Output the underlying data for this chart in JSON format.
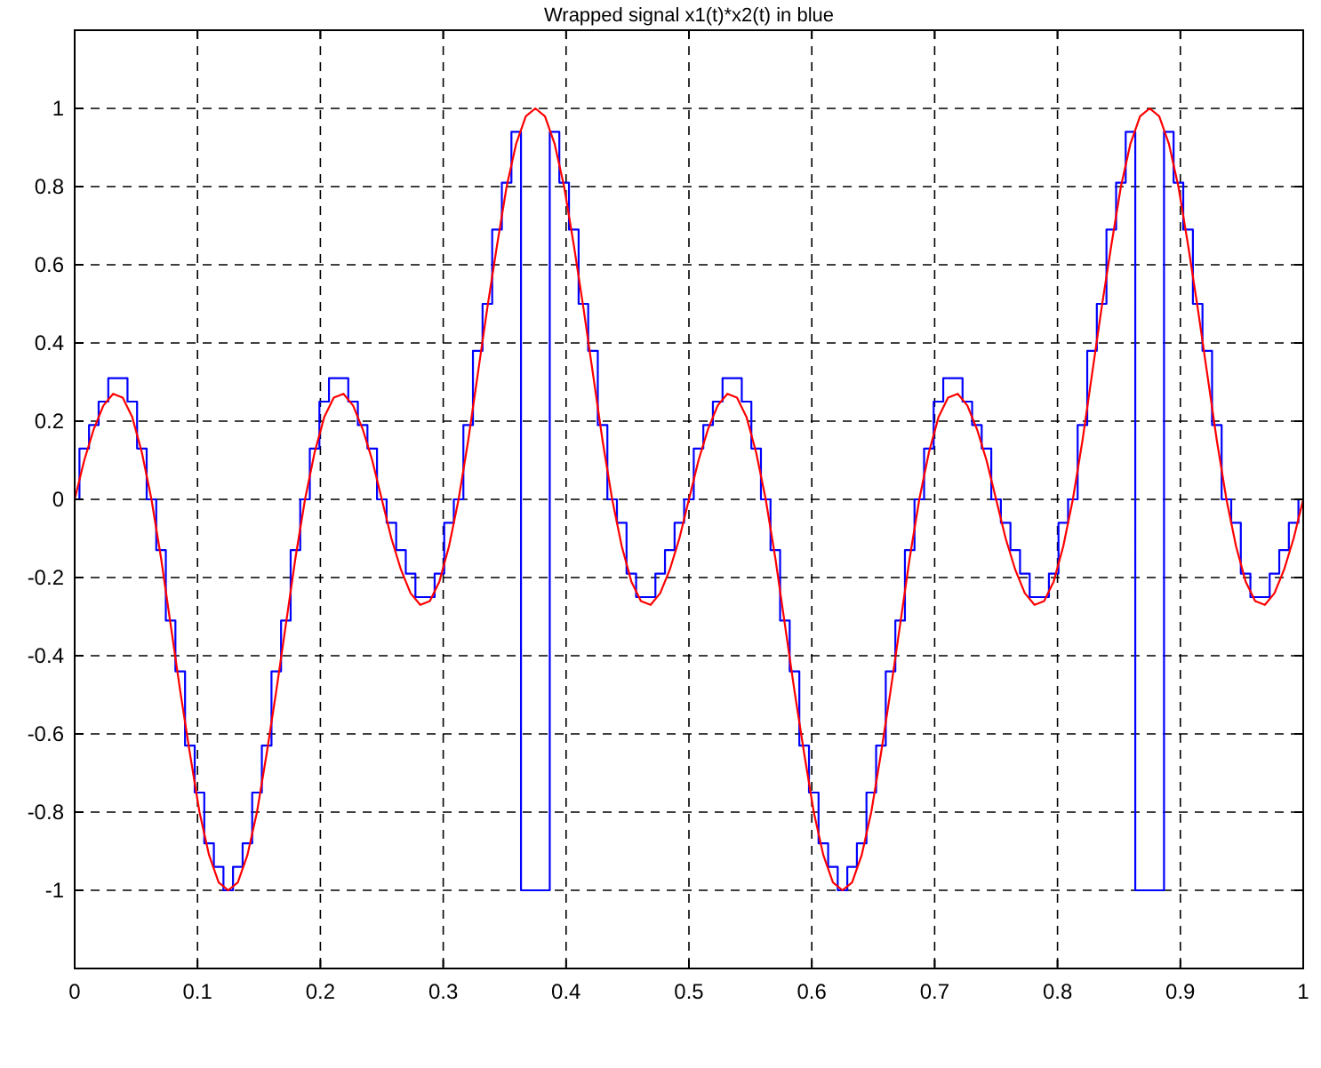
{
  "chart_data": {
    "type": "line",
    "title": "Wrapped signal x1(t)*x2(t) in blue",
    "x": [
      0,
      0.0078,
      0.0156,
      0.0234,
      0.0313,
      0.0391,
      0.0469,
      0.0547,
      0.0625,
      0.0703,
      0.0781,
      0.0859,
      0.0938,
      0.1016,
      0.1094,
      0.1172,
      0.125,
      0.1328,
      0.1406,
      0.1484,
      0.1563,
      0.1641,
      0.1719,
      0.1797,
      0.1875,
      0.1953,
      0.2031,
      0.2109,
      0.2188,
      0.2266,
      0.2344,
      0.2422,
      0.25,
      0.2578,
      0.2656,
      0.2734,
      0.2813,
      0.2891,
      0.2969,
      0.3047,
      0.3125,
      0.3203,
      0.3281,
      0.3359,
      0.3438,
      0.3516,
      0.3594,
      0.3672,
      0.375,
      0.3828,
      0.3906,
      0.3984,
      0.4063,
      0.4141,
      0.4219,
      0.4297,
      0.4375,
      0.4453,
      0.4531,
      0.4609,
      0.4688,
      0.4766,
      0.4844,
      0.4922,
      0.5,
      0.5078,
      0.5156,
      0.5234,
      0.5313,
      0.5391,
      0.5469,
      0.5547,
      0.5625,
      0.5703,
      0.5781,
      0.5859,
      0.5938,
      0.6016,
      0.6094,
      0.6172,
      0.625,
      0.6328,
      0.6406,
      0.6484,
      0.6563,
      0.6641,
      0.6719,
      0.6797,
      0.6875,
      0.6953,
      0.7031,
      0.7109,
      0.7188,
      0.7266,
      0.7344,
      0.7422,
      0.75,
      0.7578,
      0.7656,
      0.7734,
      0.7813,
      0.7891,
      0.7969,
      0.8047,
      0.8125,
      0.8203,
      0.8281,
      0.8359,
      0.8438,
      0.8516,
      0.8594,
      0.8672,
      0.875,
      0.8828,
      0.8906,
      0.8984,
      0.9063,
      0.9141,
      0.9219,
      0.9297,
      0.9375,
      0.9453,
      0.9531,
      0.9609,
      0.9688,
      0.9766,
      0.9844,
      0.9922,
      1
    ],
    "series": [
      {
        "type": "step",
        "color": "#0000ff",
        "values": [
          0,
          0.13,
          0.19,
          0.25,
          0.31,
          0.31,
          0.25,
          0.13,
          0,
          -0.13,
          -0.31,
          -0.44,
          -0.63,
          -0.75,
          -0.88,
          -0.94,
          -1,
          -0.94,
          -0.88,
          -0.75,
          -0.63,
          -0.44,
          -0.31,
          -0.13,
          0,
          0.13,
          0.25,
          0.31,
          0.31,
          0.25,
          0.19,
          0.13,
          0,
          -0.06,
          -0.13,
          -0.19,
          -0.25,
          -0.25,
          -0.19,
          -0.06,
          0,
          0.19,
          0.38,
          0.5,
          0.69,
          0.81,
          0.94,
          -1,
          -1,
          -1,
          0.94,
          0.81,
          0.69,
          0.5,
          0.38,
          0.19,
          0,
          -0.06,
          -0.19,
          -0.25,
          -0.25,
          -0.19,
          -0.13,
          -0.06,
          0,
          0.13,
          0.19,
          0.25,
          0.31,
          0.31,
          0.25,
          0.13,
          0,
          -0.13,
          -0.31,
          -0.44,
          -0.63,
          -0.75,
          -0.88,
          -0.94,
          -1,
          -0.94,
          -0.88,
          -0.75,
          -0.63,
          -0.44,
          -0.31,
          -0.13,
          0,
          0.13,
          0.25,
          0.31,
          0.31,
          0.25,
          0.19,
          0.13,
          0,
          -0.06,
          -0.13,
          -0.19,
          -0.25,
          -0.25,
          -0.19,
          -0.06,
          0,
          0.19,
          0.38,
          0.5,
          0.69,
          0.81,
          0.94,
          -1,
          -1,
          -1,
          0.94,
          0.81,
          0.69,
          0.5,
          0.38,
          0.19,
          0,
          -0.06,
          -0.19,
          -0.25,
          -0.25,
          -0.19,
          -0.13,
          -0.06,
          0
        ]
      },
      {
        "type": "line",
        "color": "#ff0000",
        "values": [
          0,
          0.1,
          0.18,
          0.24,
          0.27,
          0.26,
          0.21,
          0.12,
          0,
          -0.15,
          -0.32,
          -0.49,
          -0.65,
          -0.8,
          -0.91,
          -0.98,
          -1,
          -0.98,
          -0.91,
          -0.8,
          -0.65,
          -0.49,
          -0.32,
          -0.15,
          0,
          0.12,
          0.21,
          0.26,
          0.27,
          0.24,
          0.18,
          0.1,
          0,
          -0.1,
          -0.18,
          -0.24,
          -0.27,
          -0.26,
          -0.21,
          -0.12,
          0,
          0.15,
          0.32,
          0.49,
          0.65,
          0.8,
          0.91,
          0.98,
          1,
          0.98,
          0.91,
          0.8,
          0.65,
          0.49,
          0.32,
          0.15,
          0,
          -0.12,
          -0.21,
          -0.26,
          -0.27,
          -0.24,
          -0.18,
          -0.1,
          0,
          0.1,
          0.18,
          0.24,
          0.27,
          0.26,
          0.21,
          0.12,
          0,
          -0.15,
          -0.32,
          -0.49,
          -0.65,
          -0.8,
          -0.91,
          -0.98,
          -1,
          -0.98,
          -0.91,
          -0.8,
          -0.65,
          -0.49,
          -0.32,
          -0.15,
          0,
          0.12,
          0.21,
          0.26,
          0.27,
          0.24,
          0.18,
          0.1,
          0,
          -0.1,
          -0.18,
          -0.24,
          -0.27,
          -0.26,
          -0.21,
          -0.12,
          0,
          0.15,
          0.32,
          0.49,
          0.65,
          0.8,
          0.91,
          0.98,
          1,
          0.98,
          0.91,
          0.8,
          0.65,
          0.49,
          0.32,
          0.15,
          0,
          -0.12,
          -0.21,
          -0.26,
          -0.27,
          -0.24,
          -0.18,
          -0.1,
          0
        ]
      }
    ],
    "xlim": [
      0,
      1
    ],
    "xticks": [
      0,
      0.1,
      0.2,
      0.3,
      0.4,
      0.5,
      0.6,
      0.7,
      0.8,
      0.9,
      1
    ],
    "ylim": [
      -1.2,
      1.2
    ],
    "yticks": [
      -1,
      -0.8,
      -0.6,
      -0.4,
      -0.2,
      0,
      0.2,
      0.4,
      0.6,
      0.8,
      1
    ],
    "grid": true,
    "line_style": "solid",
    "marker": "none"
  }
}
